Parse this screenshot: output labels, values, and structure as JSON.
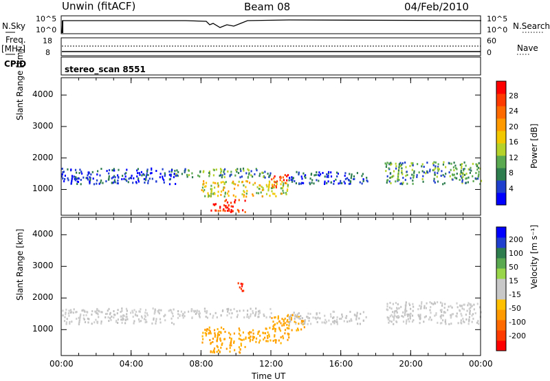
{
  "header": {
    "station": "Unwin (fitACF)",
    "beam": "Beam 08",
    "date": "04/Feb/2010"
  },
  "top_panels": {
    "nsky_label": "N.Sky",
    "nsky_ticks": [
      "10^5",
      "10^0"
    ],
    "nsearch_label": "N.Search",
    "nsearch_ticks": [
      "10^5",
      "10^0"
    ],
    "freq_label": "Freq.",
    "freq_unit": "[MHz]",
    "freq_ticks": [
      "18",
      "8"
    ],
    "nave_label": "Nave",
    "nave_ticks": [
      "60",
      "0"
    ],
    "cpid_label": "CPID",
    "cpid_value": "stereo_scan 8551"
  },
  "chart_data": [
    {
      "type": "heatmap",
      "name": "power",
      "xlabel": "",
      "ylabel": "Slant Range [km]",
      "x_ticks": [
        "00:00",
        "04:00",
        "08:00",
        "12:00",
        "16:00",
        "20:00",
        "00:00"
      ],
      "y_ticks": [
        1000,
        2000,
        3000,
        4000
      ],
      "xlim_hours": [
        0,
        24
      ],
      "ylim_km": [
        180,
        4550
      ],
      "colorbar": {
        "label": "Power [dB]",
        "ticks": [
          "4",
          "8",
          "12",
          "16",
          "20",
          "24",
          "28"
        ],
        "colors": [
          "#0000ff",
          "#1f3fcf",
          "#2e7d4f",
          "#5aa850",
          "#b4d22a",
          "#f2c800",
          "#ff9a00",
          "#ff6a00",
          "#ff3a00",
          "#ff0000"
        ]
      },
      "bands": [
        {
          "hours": [
            0,
            6.5
          ],
          "range_km": [
            1200,
            1700
          ],
          "level": "low"
        },
        {
          "hours": [
            6.5,
            12
          ],
          "range_km": [
            1400,
            1700
          ],
          "level": "medium"
        },
        {
          "hours": [
            8,
            13
          ],
          "range_km": [
            800,
            1300
          ],
          "level": "high"
        },
        {
          "hours": [
            8.5,
            10.5
          ],
          "range_km": [
            300,
            700
          ],
          "level": "very-high"
        },
        {
          "hours": [
            12,
            13
          ],
          "range_km": [
            1100,
            1500
          ],
          "level": "very-high"
        },
        {
          "hours": [
            13,
            17.5
          ],
          "range_km": [
            1200,
            1600
          ],
          "level": "low"
        },
        {
          "hours": [
            18.5,
            24
          ],
          "range_km": [
            1200,
            1900
          ],
          "level": "medium"
        }
      ]
    },
    {
      "type": "heatmap",
      "name": "velocity",
      "xlabel": "Time UT",
      "ylabel": "Slant Range [km]",
      "x_ticks": [
        "00:00",
        "04:00",
        "08:00",
        "12:00",
        "16:00",
        "20:00",
        "00:00"
      ],
      "y_ticks": [
        1000,
        2000,
        3000,
        4000
      ],
      "xlim_hours": [
        0,
        24
      ],
      "ylim_km": [
        180,
        4550
      ],
      "colorbar": {
        "label": "Velocity [m s⁻¹]",
        "ticks": [
          "200",
          "100",
          "50",
          "15",
          "-15",
          "-50",
          "-100",
          "-200"
        ],
        "colors": [
          "#0000ff",
          "#1f3fcf",
          "#2e7d4f",
          "#5aa850",
          "#9ad64a",
          "#c8c8c8",
          "#c8c8c8",
          "#ffc000",
          "#ff9a00",
          "#ff6a00",
          "#ff3a00",
          "#ff0000"
        ]
      },
      "bands": [
        {
          "hours": [
            0,
            6.5
          ],
          "range_km": [
            1200,
            1700
          ],
          "level": "grey"
        },
        {
          "hours": [
            6.5,
            12
          ],
          "range_km": [
            1400,
            1700
          ],
          "level": "grey"
        },
        {
          "hours": [
            8,
            13
          ],
          "range_km": [
            600,
            1100
          ],
          "level": "orange"
        },
        {
          "hours": [
            8.5,
            10.5
          ],
          "range_km": [
            300,
            600
          ],
          "level": "orange"
        },
        {
          "hours": [
            12,
            14
          ],
          "range_km": [
            1000,
            1500
          ],
          "level": "orange"
        },
        {
          "hours": [
            10,
            10.5
          ],
          "range_km": [
            2200,
            2500
          ],
          "level": "red"
        },
        {
          "hours": [
            13,
            17.5
          ],
          "range_km": [
            1200,
            1600
          ],
          "level": "grey"
        },
        {
          "hours": [
            18.5,
            24
          ],
          "range_km": [
            1200,
            1900
          ],
          "level": "grey"
        }
      ]
    }
  ]
}
